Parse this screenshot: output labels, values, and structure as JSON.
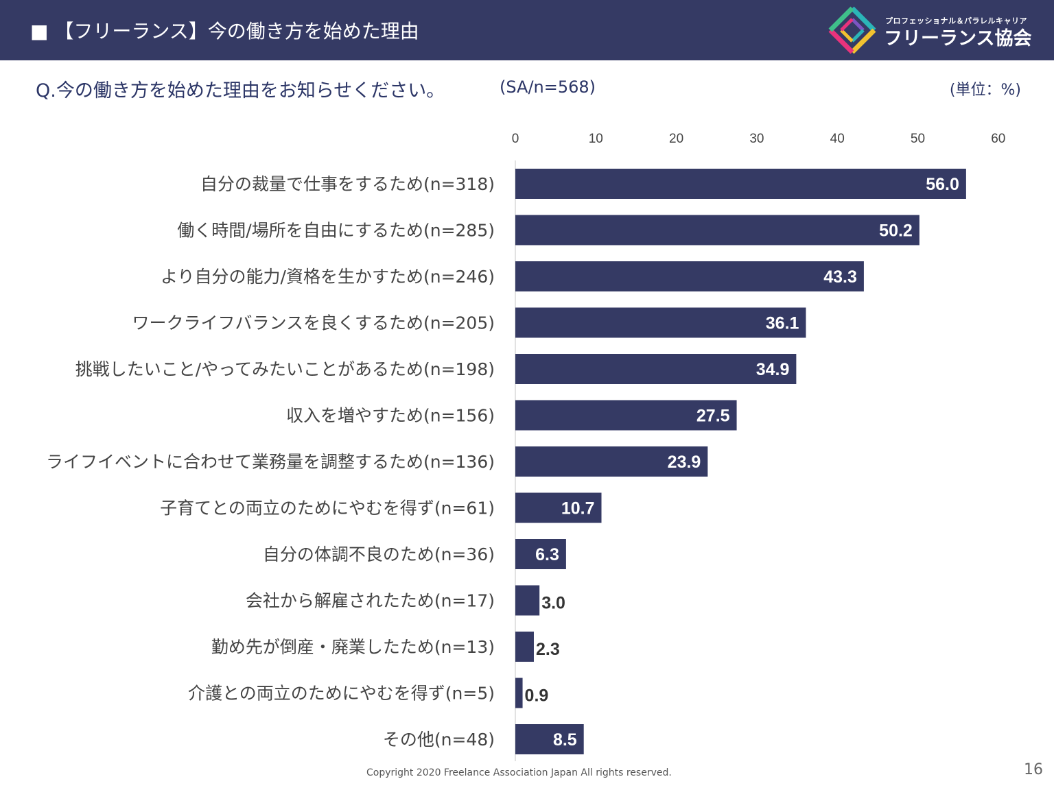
{
  "header": {
    "title": "■ 【フリーランス】今の働き方を始めた理由",
    "logo_subtitle": "プロフェッショナル＆パラレルキャリア",
    "logo_title": "フリーランス協会"
  },
  "question": {
    "text": "Q.今の働き方を始めた理由をお知らせください。",
    "sample": "(SA/n=568)",
    "unit": "(単位：%)"
  },
  "colors": {
    "header_bg": "#353a64",
    "bar": "#353a64",
    "bar_label_inside": "#ffffff",
    "bar_label_outside": "#333333",
    "category_text": "#444444",
    "axis_text": "#444444"
  },
  "chart_data": {
    "type": "bar",
    "orientation": "horizontal",
    "title": "",
    "xlabel": "",
    "ylabel": "",
    "xlim": [
      0,
      60
    ],
    "ticks": [
      0,
      10,
      20,
      30,
      40,
      50,
      60
    ],
    "categories": [
      "自分の裁量で仕事をするため(n=318)",
      "働く時間/場所を自由にするため(n=285)",
      "より自分の能力/資格を生かすため(n=246)",
      "ワークライフバランスを良くするため(n=205)",
      "挑戦したいこと/やってみたいことがあるため(n=198)",
      "収入を増やすため(n=156)",
      "ライフイベントに合わせて業務量を調整するため(n=136)",
      "子育てとの両立のためにやむを得ず(n=61)",
      "自分の体調不良のため(n=36)",
      "会社から解雇されたため(n=17)",
      "勤め先が倒産・廃業したため(n=13)",
      "介護との両立のためにやむを得ず(n=5)",
      "その他(n=48)"
    ],
    "values": [
      56.0,
      50.2,
      43.3,
      36.1,
      34.9,
      27.5,
      23.9,
      10.7,
      6.3,
      3.0,
      2.3,
      0.9,
      8.5
    ],
    "value_labels": [
      "56.0",
      "50.2",
      "43.3",
      "36.1",
      "34.9",
      "27.5",
      "23.9",
      "10.7",
      "6.3",
      "3.0",
      "2.3",
      "0.9",
      "8.5"
    ],
    "legend": "none",
    "grid": false
  },
  "footer": {
    "copyright": "Copyright 2020 Freelance Association Japan  All rights reserved.",
    "page_number": "16"
  }
}
